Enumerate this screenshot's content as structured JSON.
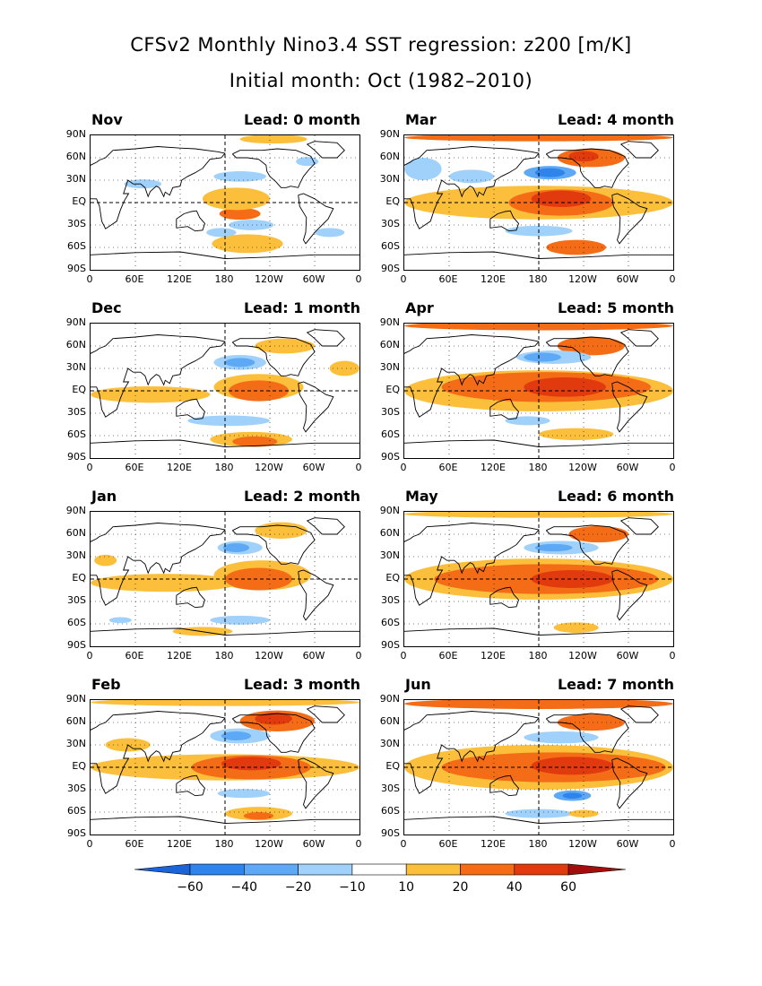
{
  "title_line1": "CFSv2 Monthly Nino3.4 SST regression: z200 [m/K]",
  "title_line2": "Initial month: Oct (1982–2010)",
  "colors": {
    "neg60": "#1a5fd8",
    "neg40": "#2f84ec",
    "neg20": "#5ea9f5",
    "neg10": "#9fd1fa",
    "zero": "#ffffff",
    "pos10": "#fbbf3b",
    "pos20": "#f56c16",
    "pos40": "#e13a0f",
    "pos60": "#c4130e",
    "ext_low": "#1b63d8",
    "ext_high": "#a50d0d"
  },
  "chart_data": {
    "type": "heatmap",
    "title": "CFSv2 Monthly Nino3.4 SST regression: z200 [m/K]",
    "subtitle": "Initial month: Oct (1982–2010)",
    "variable": "z200",
    "units": "m/K",
    "lat_ticks": [
      "90N",
      "60N",
      "30N",
      "EQ",
      "30S",
      "60S",
      "90S"
    ],
    "lon_ticks": [
      "0",
      "60E",
      "120E",
      "180",
      "120W",
      "60W",
      "0"
    ],
    "colorbar": {
      "levels": [
        -60,
        -40,
        -20,
        -10,
        10,
        20,
        40,
        60
      ],
      "labels": [
        "−60",
        "−40",
        "−20",
        "−10",
        "10",
        "20",
        "40",
        "60"
      ]
    },
    "panels": [
      {
        "month": "Nov",
        "lead_label": "Lead: 0 month",
        "lead": 0,
        "blobs": [
          {
            "lon": 200,
            "lat": -15,
            "w": 55,
            "h": 16,
            "v": 20
          },
          {
            "lon": 195,
            "lat": 5,
            "w": 90,
            "h": 30,
            "v": 10
          },
          {
            "lon": 215,
            "lat": -58,
            "w": 60,
            "h": 14,
            "v": 20
          },
          {
            "lon": 210,
            "lat": -55,
            "w": 95,
            "h": 25,
            "v": 10
          },
          {
            "lon": 215,
            "lat": -30,
            "w": 60,
            "h": 14,
            "v": -10
          },
          {
            "lon": 245,
            "lat": 85,
            "w": 90,
            "h": 12,
            "v": 10
          },
          {
            "lon": 200,
            "lat": 35,
            "w": 70,
            "h": 14,
            "v": -10
          },
          {
            "lon": 70,
            "lat": 25,
            "w": 50,
            "h": 12,
            "v": -10
          },
          {
            "lon": 175,
            "lat": -40,
            "w": 40,
            "h": 12,
            "v": -10
          },
          {
            "lon": 320,
            "lat": -40,
            "w": 40,
            "h": 12,
            "v": -10
          },
          {
            "lon": 290,
            "lat": 55,
            "w": 30,
            "h": 12,
            "v": -10
          }
        ]
      },
      {
        "month": "Mar",
        "lead_label": "Lead: 4 month",
        "lead": 4,
        "blobs": [
          {
            "lon": 180,
            "lat": 0,
            "w": 360,
            "h": 45,
            "v": 10
          },
          {
            "lon": 210,
            "lat": 0,
            "w": 140,
            "h": 35,
            "v": 20
          },
          {
            "lon": 210,
            "lat": 5,
            "w": 80,
            "h": 22,
            "v": 40
          },
          {
            "lon": 180,
            "lat": 87,
            "w": 360,
            "h": 10,
            "v": 20
          },
          {
            "lon": 250,
            "lat": 60,
            "w": 90,
            "h": 25,
            "v": 20
          },
          {
            "lon": 240,
            "lat": 62,
            "w": 40,
            "h": 14,
            "v": 40
          },
          {
            "lon": 195,
            "lat": 40,
            "w": 70,
            "h": 18,
            "v": -20
          },
          {
            "lon": 195,
            "lat": 40,
            "w": 40,
            "h": 12,
            "v": -40
          },
          {
            "lon": 230,
            "lat": -60,
            "w": 80,
            "h": 20,
            "v": 20
          },
          {
            "lon": 180,
            "lat": -38,
            "w": 90,
            "h": 14,
            "v": -10
          },
          {
            "lon": 25,
            "lat": 45,
            "w": 50,
            "h": 30,
            "v": -10
          },
          {
            "lon": 90,
            "lat": 35,
            "w": 60,
            "h": 18,
            "v": -10
          }
        ]
      },
      {
        "month": "Dec",
        "lead_label": "Lead: 1 month",
        "lead": 1,
        "blobs": [
          {
            "lon": 80,
            "lat": -5,
            "w": 160,
            "h": 22,
            "v": 10
          },
          {
            "lon": 225,
            "lat": 5,
            "w": 120,
            "h": 35,
            "v": 10
          },
          {
            "lon": 225,
            "lat": 0,
            "w": 80,
            "h": 28,
            "v": 20
          },
          {
            "lon": 215,
            "lat": -65,
            "w": 110,
            "h": 20,
            "v": 10
          },
          {
            "lon": 220,
            "lat": -68,
            "w": 60,
            "h": 14,
            "v": 20
          },
          {
            "lon": 185,
            "lat": -40,
            "w": 110,
            "h": 14,
            "v": -10
          },
          {
            "lon": 200,
            "lat": 38,
            "w": 70,
            "h": 20,
            "v": -10
          },
          {
            "lon": 200,
            "lat": 38,
            "w": 40,
            "h": 12,
            "v": -20
          },
          {
            "lon": 260,
            "lat": 60,
            "w": 80,
            "h": 20,
            "v": 10
          },
          {
            "lon": 340,
            "lat": 30,
            "w": 40,
            "h": 20,
            "v": 10
          }
        ]
      },
      {
        "month": "Apr",
        "lead_label": "Lead: 5 month",
        "lead": 5,
        "blobs": [
          {
            "lon": 180,
            "lat": 0,
            "w": 360,
            "h": 55,
            "v": 10
          },
          {
            "lon": 190,
            "lat": 5,
            "w": 280,
            "h": 40,
            "v": 20
          },
          {
            "lon": 215,
            "lat": 5,
            "w": 110,
            "h": 26,
            "v": 40
          },
          {
            "lon": 180,
            "lat": 87,
            "w": 360,
            "h": 12,
            "v": 20
          },
          {
            "lon": 250,
            "lat": 60,
            "w": 90,
            "h": 25,
            "v": 20
          },
          {
            "lon": 200,
            "lat": 45,
            "w": 100,
            "h": 18,
            "v": -10
          },
          {
            "lon": 185,
            "lat": 45,
            "w": 50,
            "h": 12,
            "v": -20
          },
          {
            "lon": 230,
            "lat": -58,
            "w": 100,
            "h": 16,
            "v": 10
          },
          {
            "lon": 165,
            "lat": -40,
            "w": 60,
            "h": 12,
            "v": -10
          }
        ]
      },
      {
        "month": "Jan",
        "lead_label": "Lead: 2 month",
        "lead": 2,
        "blobs": [
          {
            "lon": 100,
            "lat": -5,
            "w": 200,
            "h": 24,
            "v": 10
          },
          {
            "lon": 230,
            "lat": 5,
            "w": 130,
            "h": 40,
            "v": 10
          },
          {
            "lon": 225,
            "lat": 0,
            "w": 90,
            "h": 30,
            "v": 20
          },
          {
            "lon": 255,
            "lat": 65,
            "w": 70,
            "h": 22,
            "v": 10
          },
          {
            "lon": 200,
            "lat": 42,
            "w": 60,
            "h": 18,
            "v": -10
          },
          {
            "lon": 195,
            "lat": 42,
            "w": 35,
            "h": 12,
            "v": -20
          },
          {
            "lon": 200,
            "lat": -55,
            "w": 80,
            "h": 12,
            "v": -10
          },
          {
            "lon": 40,
            "lat": -55,
            "w": 30,
            "h": 8,
            "v": -10
          },
          {
            "lon": 150,
            "lat": -70,
            "w": 80,
            "h": 12,
            "v": 10
          },
          {
            "lon": 20,
            "lat": 25,
            "w": 30,
            "h": 15,
            "v": 10
          }
        ]
      },
      {
        "month": "May",
        "lead_label": "Lead: 6 month",
        "lead": 6,
        "blobs": [
          {
            "lon": 180,
            "lat": 0,
            "w": 360,
            "h": 55,
            "v": 10
          },
          {
            "lon": 190,
            "lat": 0,
            "w": 300,
            "h": 40,
            "v": 20
          },
          {
            "lon": 225,
            "lat": 0,
            "w": 110,
            "h": 24,
            "v": 40
          },
          {
            "lon": 180,
            "lat": 87,
            "w": 360,
            "h": 10,
            "v": 10
          },
          {
            "lon": 260,
            "lat": 60,
            "w": 80,
            "h": 22,
            "v": 20
          },
          {
            "lon": 210,
            "lat": 42,
            "w": 100,
            "h": 18,
            "v": -10
          },
          {
            "lon": 200,
            "lat": 42,
            "w": 50,
            "h": 10,
            "v": -20
          },
          {
            "lon": 230,
            "lat": -65,
            "w": 60,
            "h": 14,
            "v": 10
          }
        ]
      },
      {
        "month": "Feb",
        "lead_label": "Lead: 3 month",
        "lead": 3,
        "blobs": [
          {
            "lon": 180,
            "lat": 0,
            "w": 360,
            "h": 35,
            "v": 10
          },
          {
            "lon": 215,
            "lat": 0,
            "w": 160,
            "h": 32,
            "v": 20
          },
          {
            "lon": 215,
            "lat": 5,
            "w": 80,
            "h": 18,
            "v": 40
          },
          {
            "lon": 180,
            "lat": 87,
            "w": 360,
            "h": 10,
            "v": 10
          },
          {
            "lon": 250,
            "lat": 62,
            "w": 100,
            "h": 28,
            "v": 20
          },
          {
            "lon": 245,
            "lat": 65,
            "w": 50,
            "h": 16,
            "v": 40
          },
          {
            "lon": 200,
            "lat": 42,
            "w": 80,
            "h": 20,
            "v": -10
          },
          {
            "lon": 195,
            "lat": 42,
            "w": 40,
            "h": 12,
            "v": -20
          },
          {
            "lon": 225,
            "lat": -62,
            "w": 90,
            "h": 18,
            "v": 10
          },
          {
            "lon": 225,
            "lat": -65,
            "w": 40,
            "h": 10,
            "v": 20
          },
          {
            "lon": 205,
            "lat": -35,
            "w": 70,
            "h": 12,
            "v": -10
          },
          {
            "lon": 50,
            "lat": 30,
            "w": 60,
            "h": 18,
            "v": 10
          }
        ]
      },
      {
        "month": "Jun",
        "lead_label": "Lead: 7 month",
        "lead": 7,
        "blobs": [
          {
            "lon": 180,
            "lat": 0,
            "w": 360,
            "h": 60,
            "v": 10
          },
          {
            "lon": 200,
            "lat": 0,
            "w": 300,
            "h": 40,
            "v": 20
          },
          {
            "lon": 225,
            "lat": 2,
            "w": 110,
            "h": 24,
            "v": 40
          },
          {
            "lon": 180,
            "lat": 85,
            "w": 360,
            "h": 14,
            "v": 20
          },
          {
            "lon": 250,
            "lat": 60,
            "w": 90,
            "h": 22,
            "v": 20
          },
          {
            "lon": 210,
            "lat": 40,
            "w": 100,
            "h": 16,
            "v": -10
          },
          {
            "lon": 225,
            "lat": -38,
            "w": 50,
            "h": 14,
            "v": -20
          },
          {
            "lon": 225,
            "lat": -38,
            "w": 26,
            "h": 8,
            "v": -40
          },
          {
            "lon": 180,
            "lat": -62,
            "w": 90,
            "h": 12,
            "v": -10
          },
          {
            "lon": 240,
            "lat": -62,
            "w": 40,
            "h": 10,
            "v": 10
          }
        ]
      }
    ]
  }
}
